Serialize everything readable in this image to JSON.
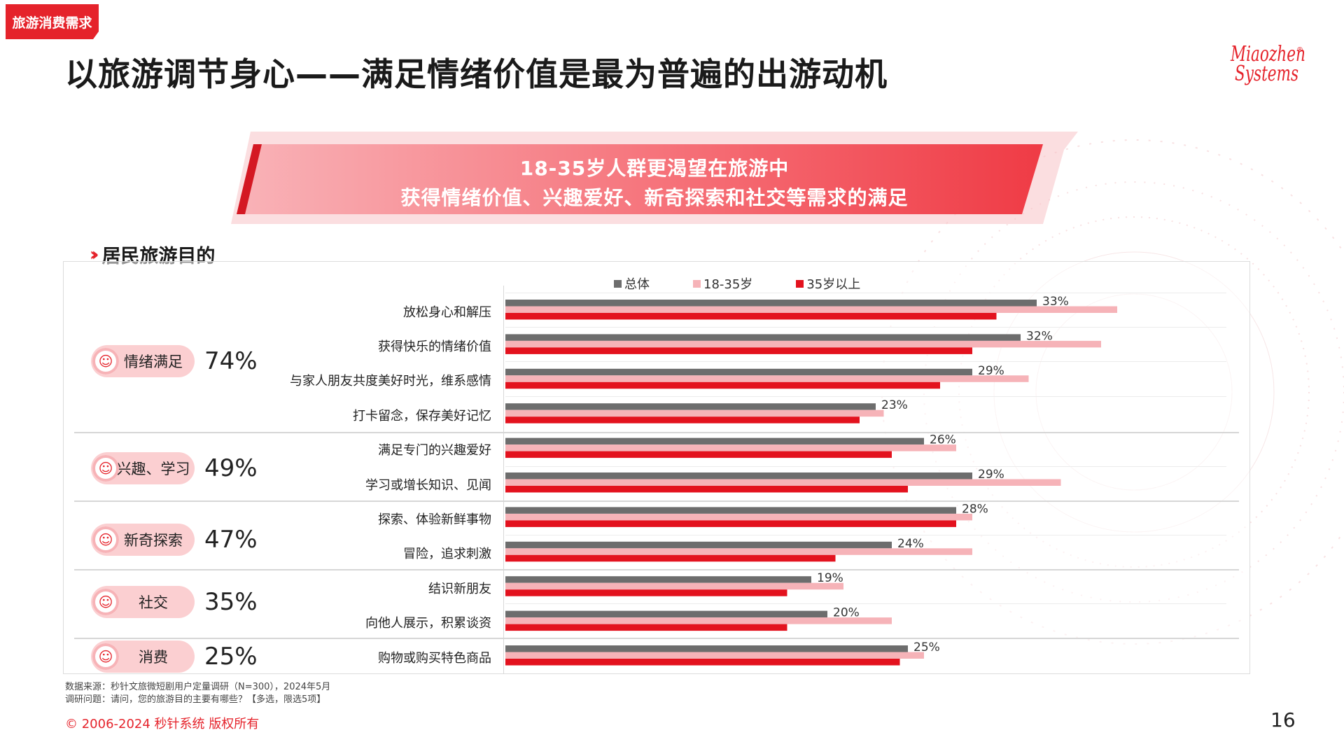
{
  "tag": "旅游消费需求",
  "title": "以旅游调节身心——满足情绪价值是最为普遍的出游动机",
  "logo": {
    "line1": "Miaozhen",
    "line2": "Systems",
    "reg": "®"
  },
  "banner": {
    "line1": "18-35岁人群更渴望在旅游中",
    "line2": "获得情绪价值、兴趣爱好、新奇探索和社交等需求的满足"
  },
  "section_title": "居民旅游目的",
  "colors": {
    "overall": "#6d6d6d",
    "young": "#f6b3b8",
    "older": "#e3121e",
    "accent": "#e5232b"
  },
  "groups": [
    {
      "label": "情绪满足",
      "pct": "74%"
    },
    {
      "label": "兴趣、学习",
      "pct": "49%"
    },
    {
      "label": "新奇探索",
      "pct": "47%"
    },
    {
      "label": "社交",
      "pct": "35%"
    },
    {
      "label": "消费",
      "pct": "25%"
    }
  ],
  "chart_data": {
    "type": "bar",
    "orientation": "horizontal",
    "legend_position": "top",
    "categories": [
      "放松身心和解压",
      "获得快乐的情绪价值",
      "与家人朋友共度美好时光，维系感情",
      "打卡留念，保存美好记忆",
      "满足专门的兴趣爱好",
      "学习或增长知识、见闻",
      "探索、体验新鲜事物",
      "冒险，追求刺激",
      "结识新朋友",
      "向他人展示，积累谈资",
      "购物或购买特色商品"
    ],
    "series": [
      {
        "name": "总体",
        "values": [
          33,
          32,
          29,
          23,
          26,
          29,
          28,
          24,
          19,
          20,
          25
        ],
        "labels": [
          "33%",
          "32%",
          "29%",
          "23%",
          "26%",
          "29%",
          "28%",
          "24%",
          "19%",
          "20%",
          "25%"
        ]
      },
      {
        "name": "18-35岁",
        "values": [
          38,
          37,
          32.5,
          23.5,
          28,
          34.5,
          29,
          29,
          21,
          24,
          26
        ]
      },
      {
        "name": "35岁以上",
        "values": [
          30.5,
          29,
          27,
          22,
          24,
          25,
          28,
          20.5,
          17.5,
          17.5,
          24.5
        ]
      }
    ],
    "xlim": [
      0,
      45
    ]
  },
  "footnote": {
    "source": "数据来源：秒针文旅微短剧用户定量调研（N=300），2024年5月",
    "question": "调研问题：请问，您的旅游目的主要有哪些？【多选，限选5项】"
  },
  "copyright": "© 2006-2024 秒针系统 版权所有",
  "page_number": "16"
}
